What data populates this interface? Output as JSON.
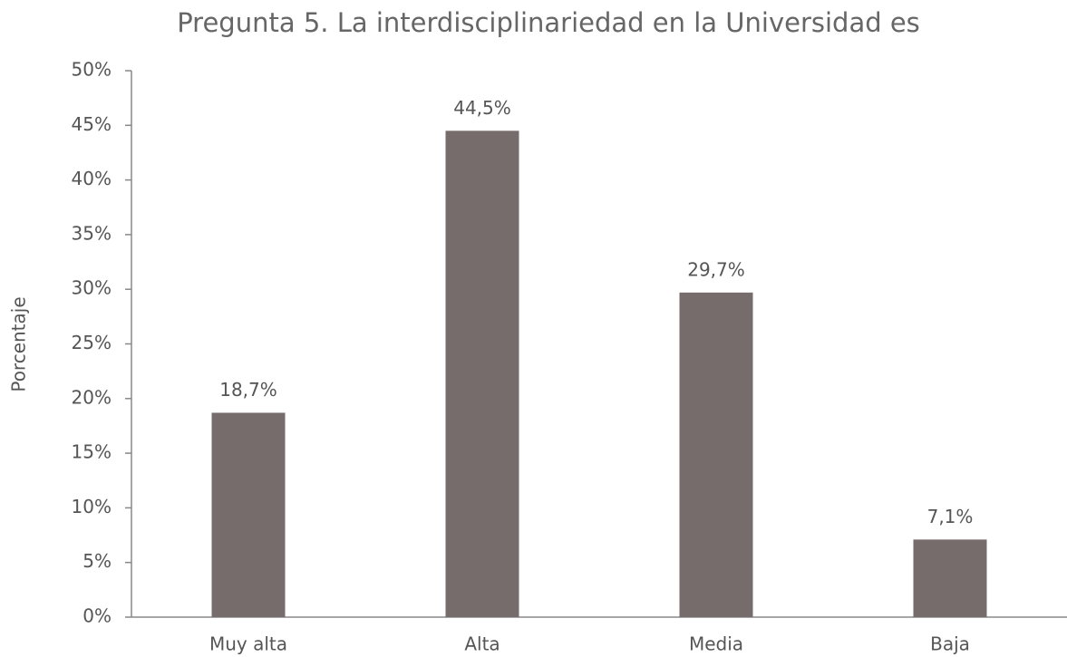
{
  "chart_data": {
    "type": "bar",
    "title": "Pregunta 5. La interdisciplinariedad en la Universidad es",
    "y_label": "Porcentaje",
    "categories": [
      "Muy alta",
      "Alta",
      "Media",
      "Baja"
    ],
    "values": [
      18.7,
      44.5,
      29.7,
      7.1
    ],
    "value_labels": [
      "18,7%",
      "44,5%",
      "29,7%",
      "7,1%"
    ],
    "color": "#766c6c",
    "ylim": [
      0,
      50
    ],
    "yticks": [
      {
        "value": 0,
        "label": "0%"
      },
      {
        "value": 5,
        "label": "5%"
      },
      {
        "value": 10,
        "label": "10%"
      },
      {
        "value": 15,
        "label": "15%"
      },
      {
        "value": 20,
        "label": "20%"
      },
      {
        "value": 25,
        "label": "25%"
      },
      {
        "value": 30,
        "label": "30%"
      },
      {
        "value": 35,
        "label": "35%"
      },
      {
        "value": 40,
        "label": "40%"
      },
      {
        "value": 45,
        "label": "45%"
      },
      {
        "value": 50,
        "label": "50%"
      }
    ],
    "grid": false
  }
}
